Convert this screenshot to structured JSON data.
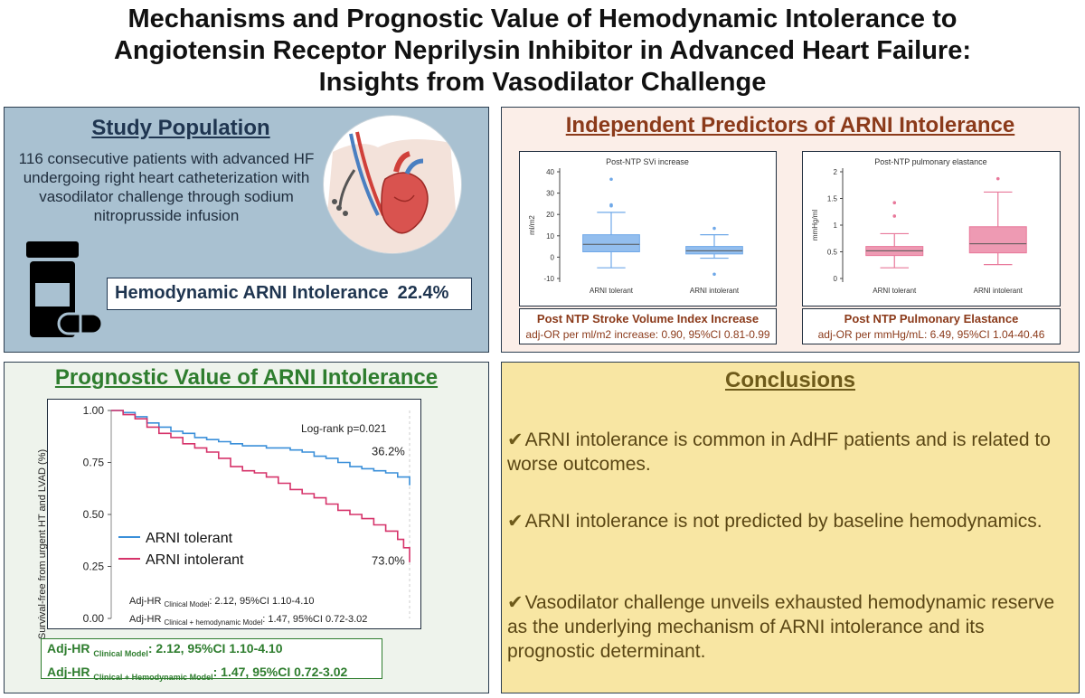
{
  "title_lines": [
    "Mechanisms and Prognostic Value of Hemodynamic Intolerance to",
    "Angiotensin Receptor Neprilysin Inhibitor in Advanced Heart Failure:",
    "Insights from Vasodilator Challenge"
  ],
  "study": {
    "title": "Study Population",
    "description": "116 consecutive patients with advanced HF undergoing right heart catheterization with vasodilator challenge through sodium nitroprusside infusion",
    "intolerance_label": "Hemodynamic ARNI Intolerance",
    "intolerance_value": "22.4%",
    "icons": [
      "heart-catheter-icon",
      "pill-bottle-icon"
    ],
    "colors": {
      "panel": "#a9c1d1",
      "title": "#1f3550"
    }
  },
  "predictors": {
    "title": "Independent Predictors of ARNI Intolerance",
    "caption1": {
      "heading": "Post NTP Stroke Volume Index Increase",
      "text": "adj-OR per ml/m2 increase: 0.90, 95%CI 0.81-0.99"
    },
    "caption2": {
      "heading": "Post NTP Pulmonary Elastance",
      "text": "adj-OR per mmHg/mL: 6.49, 95%CI 1.04-40.46"
    }
  },
  "prognostic": {
    "title": "Prognostic Value of ARNI Intolerance",
    "adj_line1_prefix": "Adj-HR",
    "adj_line1_sub": "Clinical Model",
    "adj_line1_value": ": 2.12, 95%CI 1.10-4.10",
    "adj_line2_prefix": "Adj-HR",
    "adj_line2_sub": "Clinical + Hemodynamic Model",
    "adj_line2_value": ": 1.47, 95%CI 0.72-3.02"
  },
  "conclusions": {
    "title": "Conclusions",
    "check_mark": "✔",
    "items": [
      "ARNI intolerance is common in AdHF patients and is related to worse outcomes.",
      "ARNI intolerance is not predicted by baseline hemodynamics.",
      "Vasodilator challenge unveils exhausted hemodynamic reserve as the underlying mechanism of ARNI intolerance and its prognostic determinant."
    ]
  },
  "chart_data": [
    {
      "type": "box",
      "title": "Post-NTP SVi increase",
      "ylabel": "ml/m2",
      "ylim": [
        -10,
        40
      ],
      "yticks": [
        -10,
        0,
        10,
        20,
        30,
        40
      ],
      "categories": [
        "ARNI tolerant",
        "ARNI intolerant"
      ],
      "colors": [
        "#6fa8e8",
        "#6fa8e8"
      ],
      "boxes": [
        {
          "min": -5,
          "q1": 2.5,
          "median": 6,
          "q3": 10.5,
          "max": 21,
          "outliers": [
            24,
            24.5,
            36.5
          ]
        },
        {
          "min": -0.5,
          "q1": 1.5,
          "median": 3,
          "q3": 5,
          "max": 10.5,
          "outliers": [
            13.5,
            -8
          ]
        }
      ]
    },
    {
      "type": "box",
      "title": "Post-NTP pulmonary elastance",
      "ylabel": "mmHg/ml",
      "ylim": [
        0,
        2
      ],
      "yticks": [
        0,
        0.5,
        1,
        1.5,
        2
      ],
      "categories": [
        "ARNI tolerant",
        "ARNI intolerant"
      ],
      "colors": [
        "#e8789a",
        "#e8789a"
      ],
      "boxes": [
        {
          "min": 0.2,
          "q1": 0.43,
          "median": 0.52,
          "q3": 0.6,
          "max": 0.84,
          "outliers": [
            1.17,
            1.42
          ]
        },
        {
          "min": 0.26,
          "q1": 0.48,
          "median": 0.65,
          "q3": 0.97,
          "max": 1.62,
          "outliers": [
            1.87
          ]
        }
      ]
    },
    {
      "type": "line",
      "ylabel": "Survival-free from urgent HT and LVAD (%)",
      "ylim": [
        0,
        1
      ],
      "yticks": [
        "0.00",
        "0.25",
        "0.50",
        "0.75",
        "1.00"
      ],
      "annotation": "Log-rank p=0.021",
      "legend_position": "lower-left",
      "series": [
        {
          "name": "ARNI tolerant",
          "color": "#3a8fd9",
          "end_label": "36.2%",
          "x": [
            0,
            4,
            8,
            12,
            16,
            20,
            24,
            28,
            32,
            36,
            40,
            44,
            48,
            52,
            56,
            60,
            64,
            68,
            72,
            76,
            80,
            84,
            88,
            92,
            96,
            100
          ],
          "y": [
            1.0,
            0.99,
            0.97,
            0.94,
            0.92,
            0.9,
            0.89,
            0.87,
            0.86,
            0.85,
            0.84,
            0.83,
            0.83,
            0.82,
            0.82,
            0.81,
            0.8,
            0.78,
            0.77,
            0.75,
            0.73,
            0.72,
            0.71,
            0.7,
            0.68,
            0.64
          ]
        },
        {
          "name": "ARNI intolerant",
          "color": "#d6336a",
          "end_label": "73.0%",
          "x": [
            0,
            4,
            8,
            12,
            16,
            20,
            24,
            28,
            32,
            36,
            40,
            44,
            48,
            52,
            56,
            60,
            64,
            68,
            72,
            76,
            80,
            84,
            88,
            92,
            96,
            98,
            100
          ],
          "y": [
            1.0,
            0.98,
            0.96,
            0.92,
            0.89,
            0.87,
            0.84,
            0.82,
            0.8,
            0.77,
            0.73,
            0.71,
            0.7,
            0.68,
            0.65,
            0.62,
            0.6,
            0.58,
            0.55,
            0.52,
            0.5,
            0.48,
            0.45,
            0.42,
            0.38,
            0.34,
            0.27
          ]
        }
      ],
      "inner_lines": [
        {
          "prefix": "Adj-HR",
          "sub": "Clinical Model",
          "value": ": 2.12, 95%CI 1.10-4.10"
        },
        {
          "prefix": "Adj-HR",
          "sub": "Clinical + hemodynamic Model",
          "value": ": 1.47, 95%CI 0.72-3.02"
        }
      ]
    }
  ]
}
